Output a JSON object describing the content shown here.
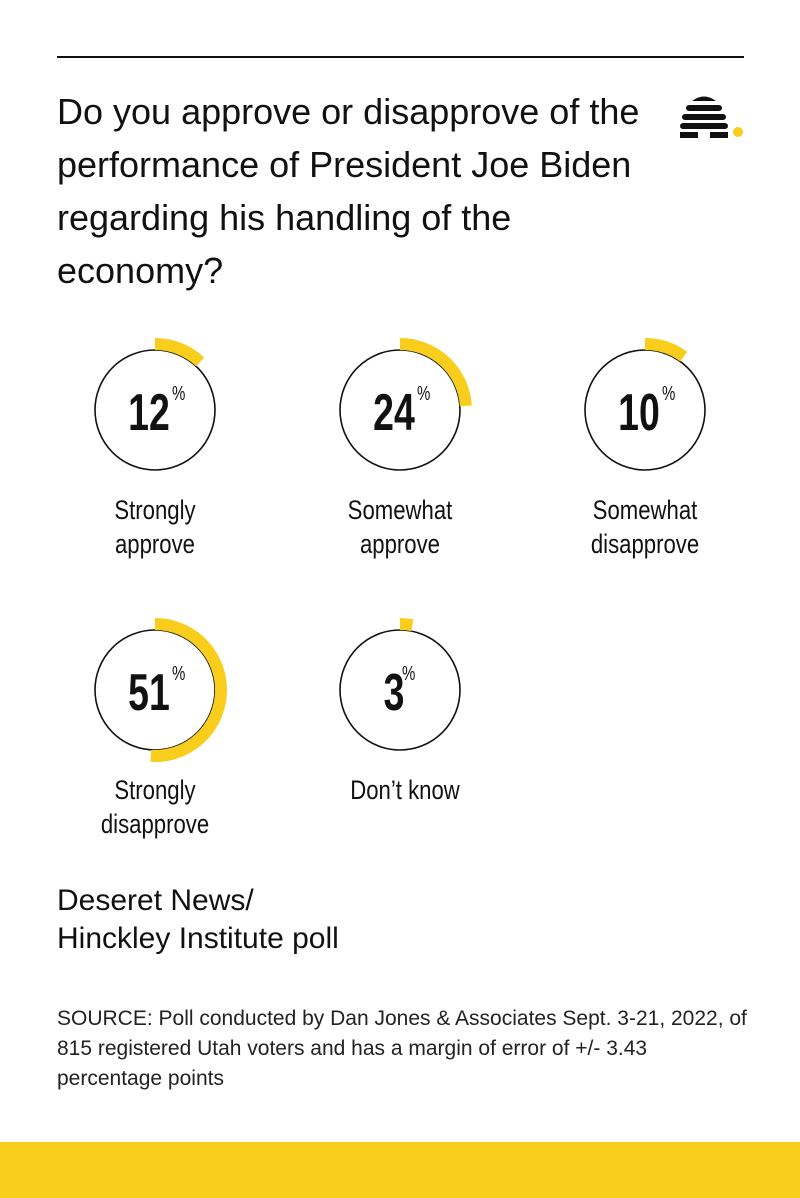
{
  "title": "Do you approve or disapprove of the performance of President Joe Biden regarding his handling of the economy?",
  "poll_name_line1": "Deseret News/",
  "poll_name_line2": "Hinckley Institute poll",
  "source": "SOURCE: Poll conducted by Dan Jones & Associates Sept. 3-21, 2022, of 815 registered Utah voters and has a margin of error of +/- 3.43 percentage points",
  "colors": {
    "accent": "#F8CD1C",
    "ink": "#111111"
  },
  "logo_icon": "beehive-icon",
  "chart_data": {
    "type": "pie",
    "unit": "%",
    "categories": [
      "Strongly approve",
      "Somewhat approve",
      "Somewhat disapprove",
      "Strongly disapprove",
      "Don’t know"
    ],
    "values": [
      12,
      24,
      10,
      51,
      3
    ],
    "labels": [
      [
        "Strongly",
        "approve"
      ],
      [
        "Somewhat",
        "approve"
      ],
      [
        "Somewhat",
        "disapprove"
      ],
      [
        "Strongly",
        "disapprove"
      ],
      [
        "Don’t know"
      ]
    ]
  }
}
